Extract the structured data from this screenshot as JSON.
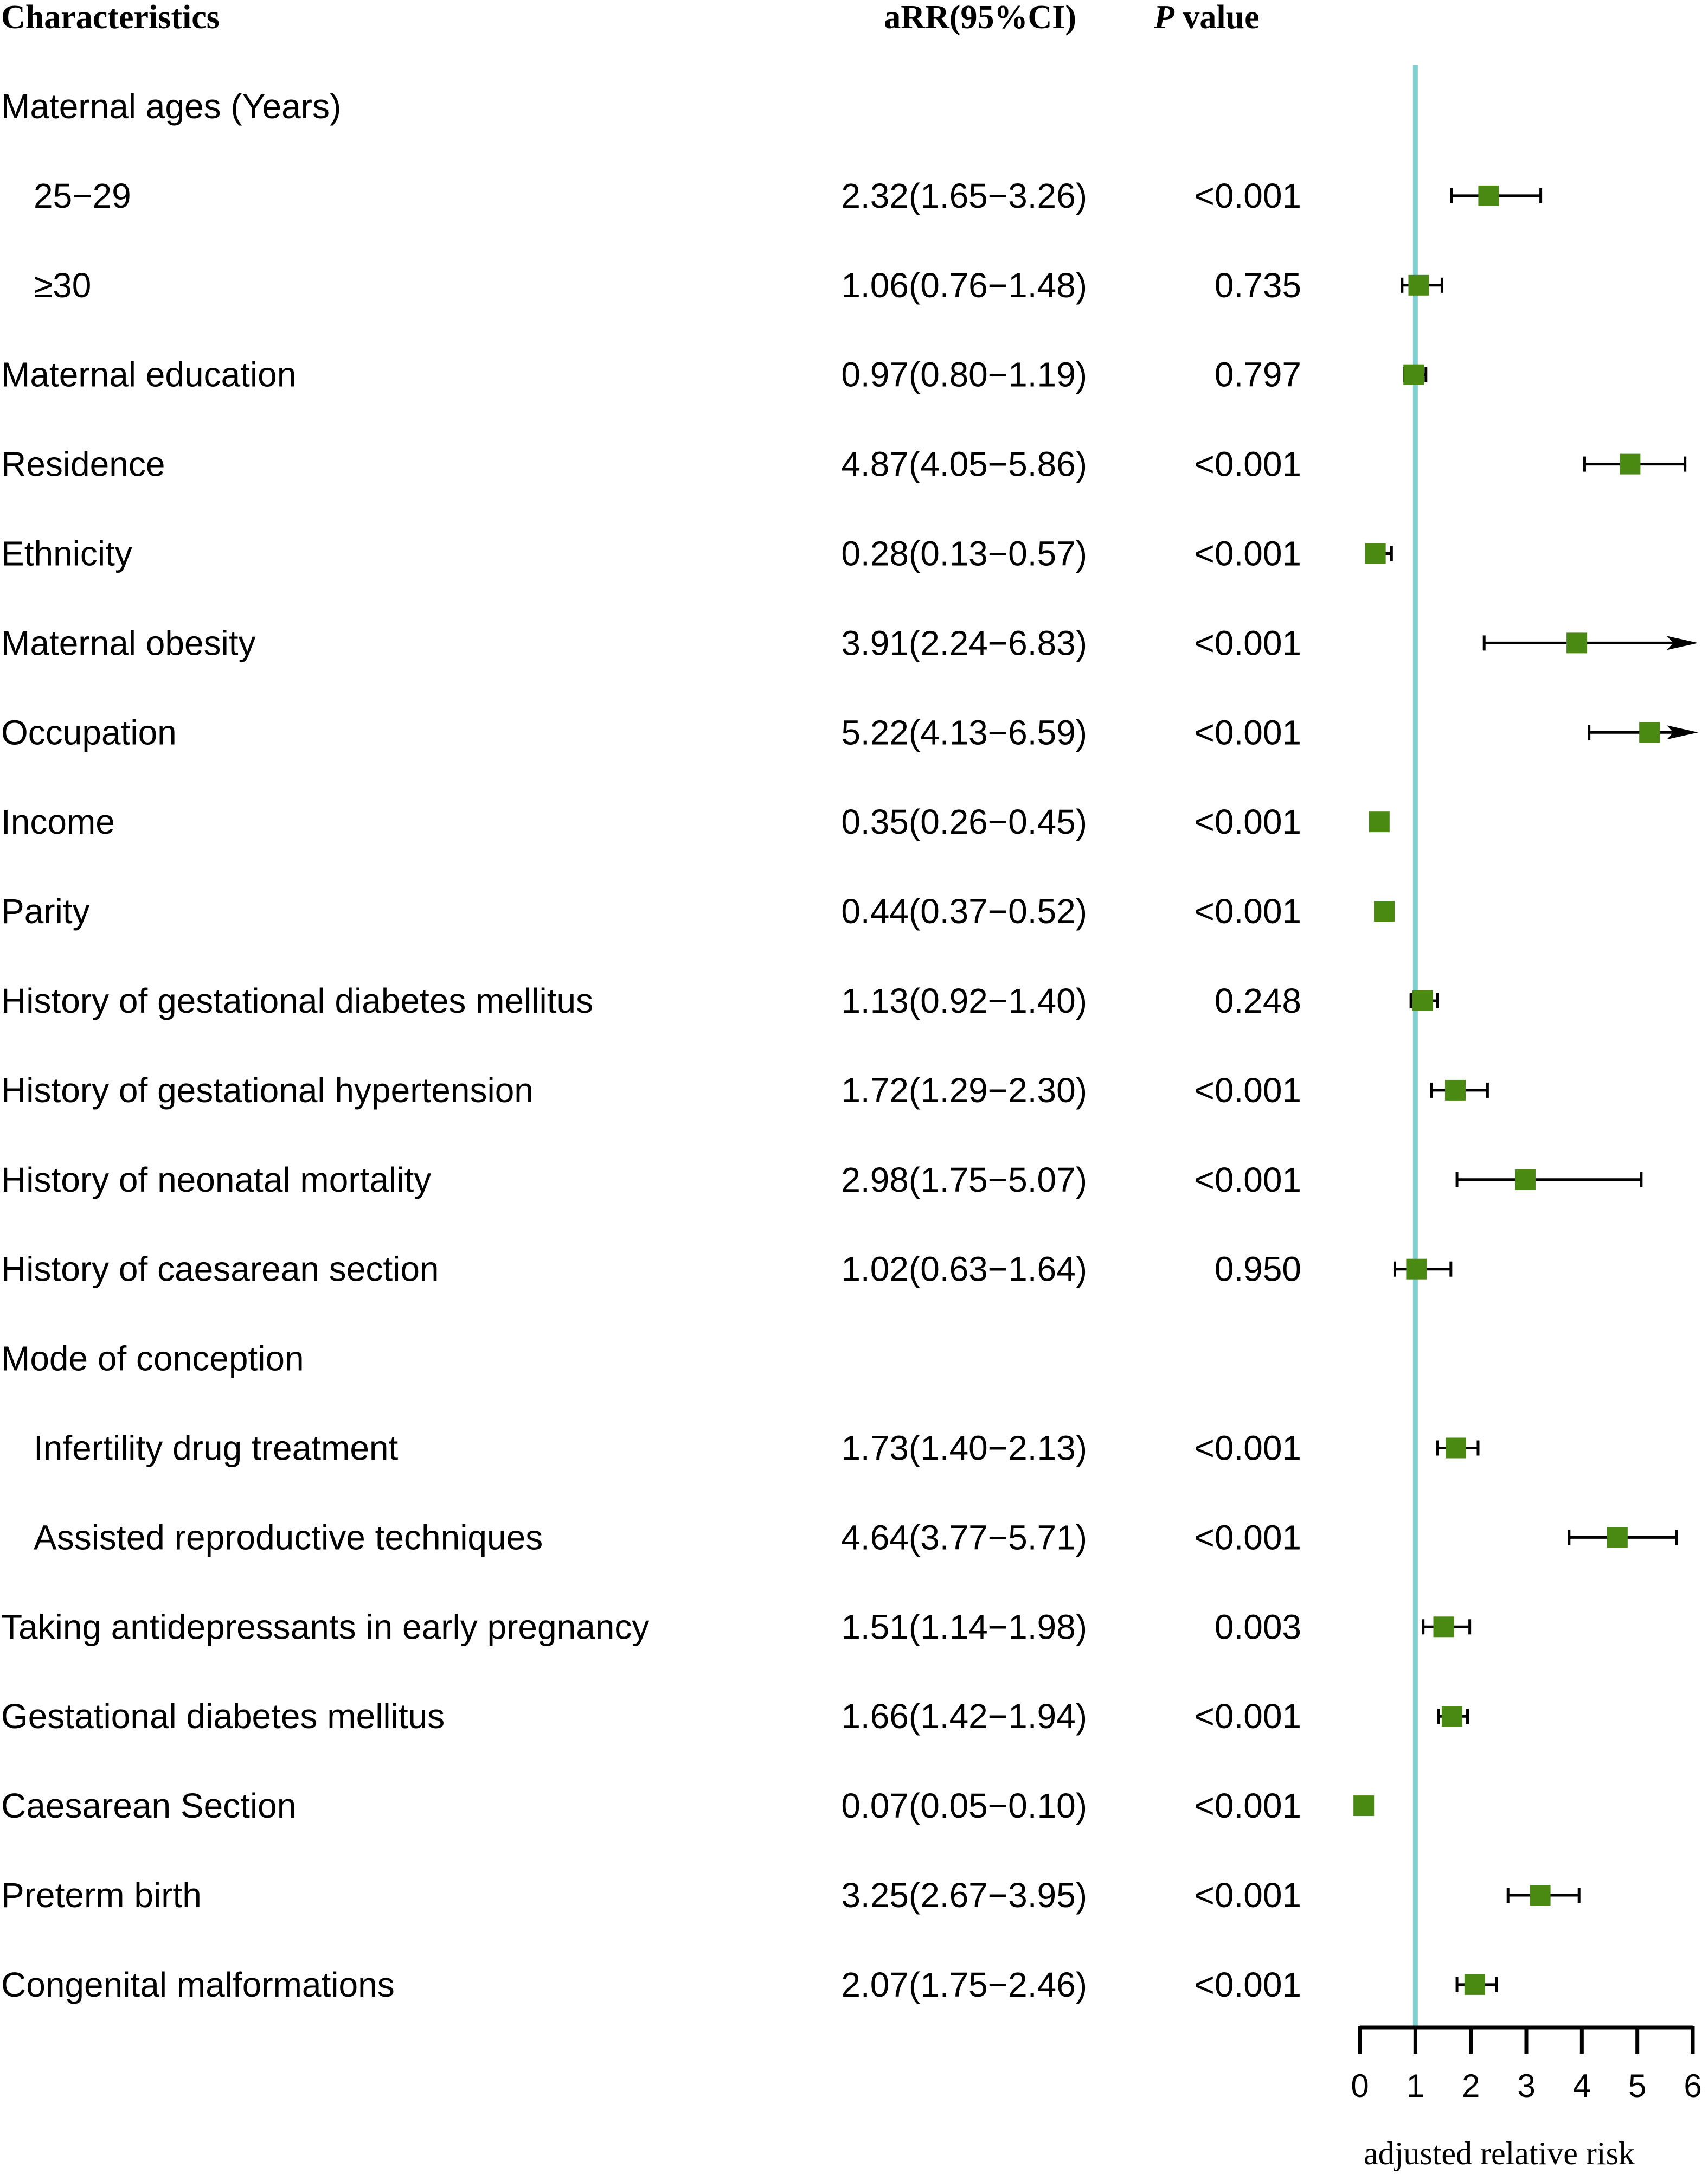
{
  "chart_data": {
    "type": "forest",
    "headers": {
      "characteristics": "Characteristics",
      "arr": "aRR(95%CI)",
      "p_italic": "P",
      "p_rest": " value"
    },
    "xlabel": "adjusted relative risk",
    "xlim": [
      0,
      6
    ],
    "xticks": [
      "0",
      "1",
      "2",
      "3",
      "4",
      "5",
      "6"
    ],
    "reference_line": 1,
    "colors": {
      "marker": "#4b8a12",
      "reference": "#7ecfd2",
      "ci": "#000000"
    },
    "rows": [
      {
        "label": "Maternal ages (Years)",
        "indent": false,
        "est": null,
        "lo": null,
        "hi": null,
        "ci_text": "",
        "p": ""
      },
      {
        "label": "25−29",
        "indent": true,
        "est": 2.32,
        "lo": 1.65,
        "hi": 3.26,
        "ci_text": "2.32(1.65−3.26)",
        "p": "<0.001"
      },
      {
        "label": "≥30",
        "indent": true,
        "est": 1.06,
        "lo": 0.76,
        "hi": 1.48,
        "ci_text": "1.06(0.76−1.48)",
        "p": "0.735"
      },
      {
        "label": "Maternal education",
        "indent": false,
        "est": 0.97,
        "lo": 0.8,
        "hi": 1.19,
        "ci_text": "0.97(0.80−1.19)",
        "p": "0.797"
      },
      {
        "label": "Residence",
        "indent": false,
        "est": 4.87,
        "lo": 4.05,
        "hi": 5.86,
        "ci_text": "4.87(4.05−5.86)",
        "p": "<0.001"
      },
      {
        "label": "Ethnicity",
        "indent": false,
        "est": 0.28,
        "lo": 0.13,
        "hi": 0.57,
        "ci_text": "0.28(0.13−0.57)",
        "p": "<0.001"
      },
      {
        "label": "Maternal obesity",
        "indent": false,
        "est": 3.91,
        "lo": 2.24,
        "hi": 6.83,
        "ci_text": "3.91(2.24−6.83)",
        "p": "<0.001"
      },
      {
        "label": "Occupation",
        "indent": false,
        "est": 5.22,
        "lo": 4.13,
        "hi": 6.59,
        "ci_text": "5.22(4.13−6.59)",
        "p": "<0.001"
      },
      {
        "label": "Income",
        "indent": false,
        "est": 0.35,
        "lo": 0.26,
        "hi": 0.45,
        "ci_text": "0.35(0.26−0.45)",
        "p": "<0.001"
      },
      {
        "label": "Parity",
        "indent": false,
        "est": 0.44,
        "lo": 0.37,
        "hi": 0.52,
        "ci_text": "0.44(0.37−0.52)",
        "p": "<0.001"
      },
      {
        "label": "History of gestational diabetes mellitus",
        "indent": false,
        "est": 1.13,
        "lo": 0.92,
        "hi": 1.4,
        "ci_text": "1.13(0.92−1.40)",
        "p": "0.248"
      },
      {
        "label": "History of gestational hypertension",
        "indent": false,
        "est": 1.72,
        "lo": 1.29,
        "hi": 2.3,
        "ci_text": "1.72(1.29−2.30)",
        "p": "<0.001"
      },
      {
        "label": "History of neonatal mortality",
        "indent": false,
        "est": 2.98,
        "lo": 1.75,
        "hi": 5.07,
        "ci_text": "2.98(1.75−5.07)",
        "p": "<0.001"
      },
      {
        "label": "History of caesarean section",
        "indent": false,
        "est": 1.02,
        "lo": 0.63,
        "hi": 1.64,
        "ci_text": "1.02(0.63−1.64)",
        "p": "0.950"
      },
      {
        "label": "Mode of conception",
        "indent": false,
        "est": null,
        "lo": null,
        "hi": null,
        "ci_text": "",
        "p": ""
      },
      {
        "label": "Infertility drug treatment",
        "indent": true,
        "est": 1.73,
        "lo": 1.4,
        "hi": 2.13,
        "ci_text": "1.73(1.40−2.13)",
        "p": "<0.001"
      },
      {
        "label": "Assisted reproductive techniques",
        "indent": true,
        "est": 4.64,
        "lo": 3.77,
        "hi": 5.71,
        "ci_text": "4.64(3.77−5.71)",
        "p": "<0.001"
      },
      {
        "label": "Taking antidepressants in early pregnancy",
        "indent": false,
        "est": 1.51,
        "lo": 1.14,
        "hi": 1.98,
        "ci_text": "1.51(1.14−1.98)",
        "p": "0.003"
      },
      {
        "label": "Gestational diabetes mellitus",
        "indent": false,
        "est": 1.66,
        "lo": 1.42,
        "hi": 1.94,
        "ci_text": "1.66(1.42−1.94)",
        "p": "<0.001"
      },
      {
        "label": "Caesarean Section",
        "indent": false,
        "est": 0.07,
        "lo": 0.05,
        "hi": 0.1,
        "ci_text": "0.07(0.05−0.10)",
        "p": "<0.001"
      },
      {
        "label": "Preterm birth",
        "indent": false,
        "est": 3.25,
        "lo": 2.67,
        "hi": 3.95,
        "ci_text": "3.25(2.67−3.95)",
        "p": "<0.001"
      },
      {
        "label": "Congenital malformations",
        "indent": false,
        "est": 2.07,
        "lo": 1.75,
        "hi": 2.46,
        "ci_text": "2.07(1.75−2.46)",
        "p": "<0.001"
      }
    ]
  }
}
